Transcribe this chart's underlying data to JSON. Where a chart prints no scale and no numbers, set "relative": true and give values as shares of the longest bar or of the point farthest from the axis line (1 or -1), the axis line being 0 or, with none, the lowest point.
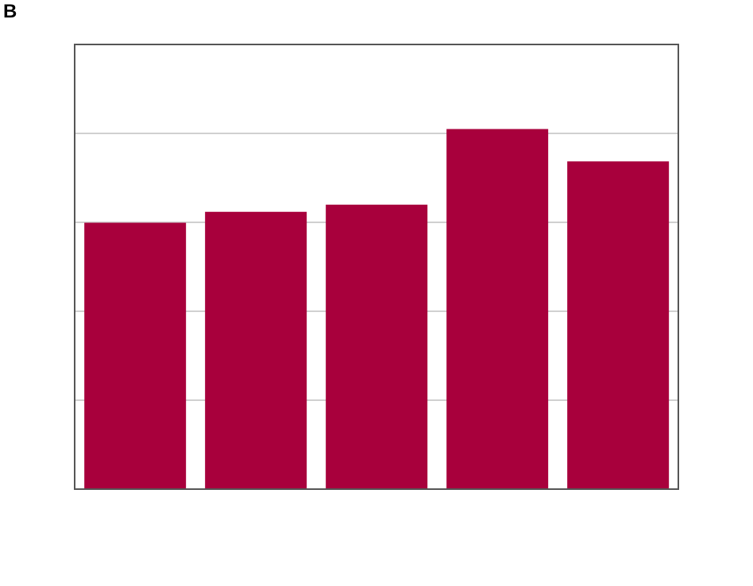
{
  "chart_data": {
    "type": "bar",
    "title": "B",
    "relative": true,
    "grid": "y",
    "categories": [
      null,
      null,
      null,
      null,
      null
    ],
    "values": [
      0.74,
      0.77,
      0.79,
      1,
      0.91
    ],
    "color": "#a8003c"
  }
}
